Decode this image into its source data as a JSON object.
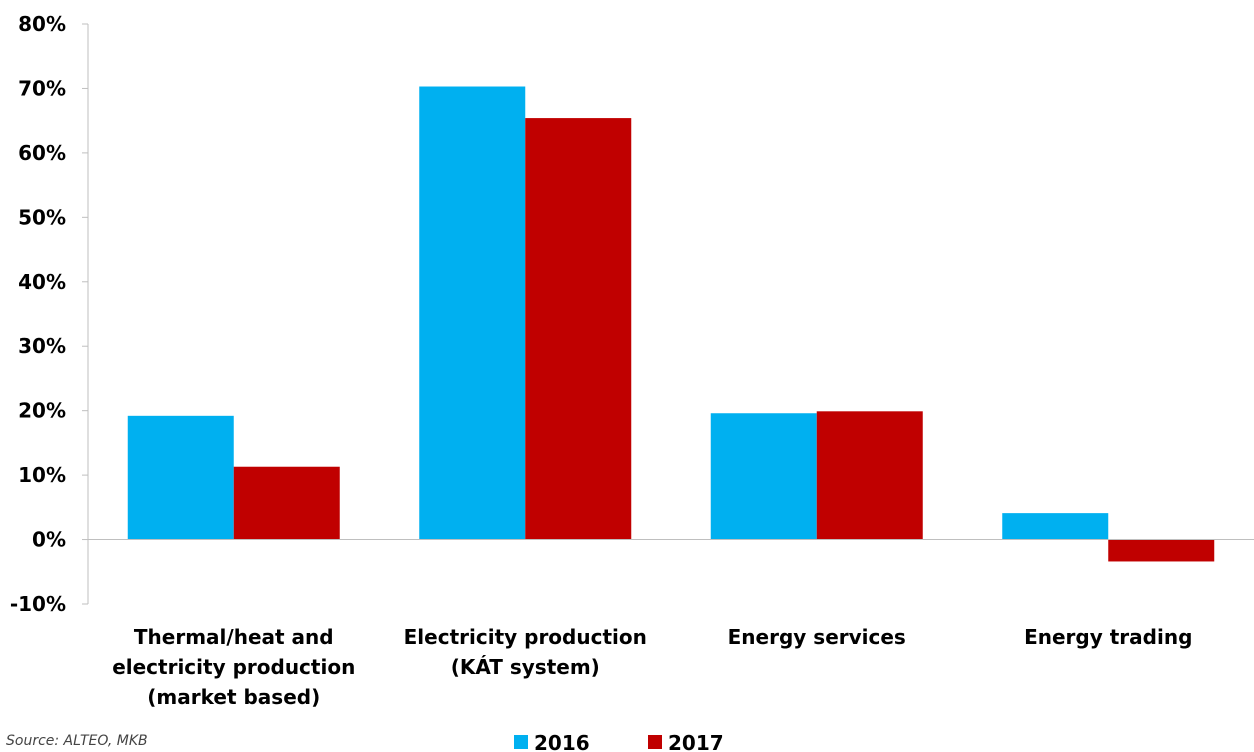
{
  "chart_data": {
    "type": "bar",
    "categories": [
      [
        "Thermal/heat and",
        "electricity production",
        "(market based)"
      ],
      [
        "Electricity production",
        "(KÁT system)"
      ],
      [
        "Energy services"
      ],
      [
        "Energy trading"
      ]
    ],
    "series": [
      {
        "name": "2016",
        "color": "#00B0F0",
        "values": [
          19.2,
          70.3,
          19.6,
          4.1
        ]
      },
      {
        "name": "2017",
        "color": "#C00000",
        "values": [
          11.3,
          65.4,
          19.9,
          -3.4
        ]
      }
    ],
    "ylim": [
      -10,
      80
    ],
    "yticks": [
      -10,
      0,
      10,
      20,
      30,
      40,
      50,
      60,
      70,
      80
    ],
    "ytick_labels": [
      "-10%",
      "0%",
      "10%",
      "20%",
      "30%",
      "40%",
      "50%",
      "60%",
      "70%",
      "80%"
    ],
    "legend_position": "bottom-center",
    "grid": false
  },
  "footnote": {
    "source": "Source: ALTEO, MKB"
  }
}
